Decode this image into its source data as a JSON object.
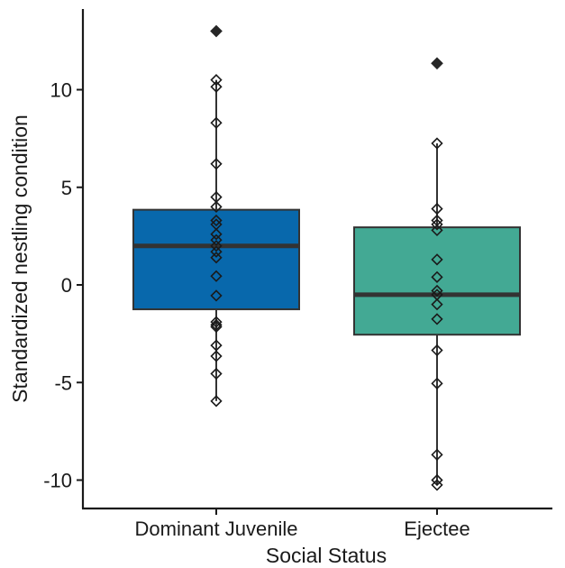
{
  "chart_data": {
    "type": "box",
    "title": "",
    "xlabel": "Social Status",
    "ylabel": "Standardized nestling condition",
    "ylim": [
      -11.5,
      13.8
    ],
    "yticks": [
      -10,
      -5,
      0,
      5,
      10
    ],
    "ytick_labels": [
      "-10",
      "-5",
      "0",
      "5",
      "10"
    ],
    "categories": [
      "Dominant Juvenile",
      "Ejectee"
    ],
    "grid": false,
    "legend": "none",
    "boxes": [
      {
        "category": "Dominant Juvenile",
        "color": "#0868ac",
        "q1": -1.25,
        "median": 2.0,
        "q3": 3.85,
        "whisker_low": -5.95,
        "whisker_high": 10.5,
        "outliers": [
          13.0
        ],
        "points": [
          10.5,
          10.15,
          8.3,
          6.2,
          4.5,
          4.0,
          3.3,
          3.1,
          2.6,
          2.3,
          2.0,
          1.7,
          1.4,
          0.45,
          -0.55,
          -1.9,
          -2.05,
          -2.15,
          -3.1,
          -3.65,
          -4.55,
          -5.95
        ]
      },
      {
        "category": "Ejectee",
        "color": "#43a994",
        "q1": -2.55,
        "median": -0.5,
        "q3": 2.95,
        "whisker_low": -10.25,
        "whisker_high": 7.25,
        "outliers": [
          11.35
        ],
        "points": [
          7.25,
          3.9,
          3.3,
          3.1,
          2.8,
          1.3,
          0.4,
          -0.3,
          -0.5,
          -1.0,
          -1.75,
          -3.35,
          -5.05,
          -8.7,
          -10.0,
          -10.25
        ]
      }
    ],
    "point_marker": "open-diamond",
    "outlier_marker": "filled-diamond",
    "outlier_color": "#262626",
    "line_color": "#333333"
  }
}
